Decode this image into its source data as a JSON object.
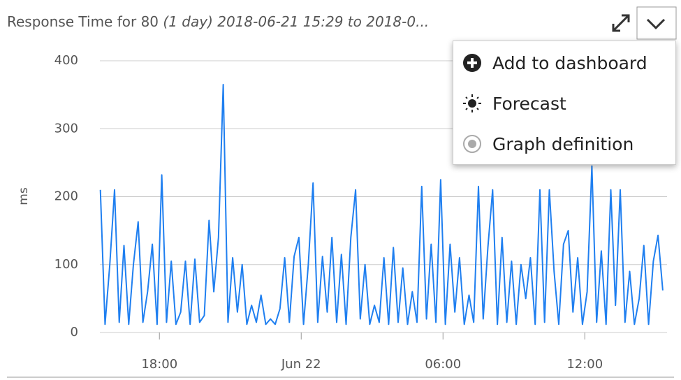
{
  "chart_data": {
    "type": "line",
    "title": "Response Time for 80",
    "subtitle": "(1 day) 2018-06-21 15:29 to 2018-0...",
    "y_label": "ms",
    "color": "#1f7ff0",
    "grid": true,
    "xlim": [
      15.48,
      39.48
    ],
    "xticks": [
      {
        "value": 18,
        "label": "18:00"
      },
      {
        "value": 24,
        "label": "Jun 22"
      },
      {
        "value": 30,
        "label": "06:00"
      },
      {
        "value": 36,
        "label": "12:00"
      }
    ],
    "ylim": [
      0,
      400
    ],
    "yticks": [
      0,
      100,
      200,
      300,
      400
    ],
    "x": [
      15.5,
      15.7,
      15.9,
      16.1,
      16.3,
      16.5,
      16.7,
      16.9,
      17.1,
      17.3,
      17.5,
      17.7,
      17.9,
      18.1,
      18.3,
      18.5,
      18.7,
      18.9,
      19.1,
      19.3,
      19.5,
      19.7,
      19.9,
      20.1,
      20.3,
      20.5,
      20.7,
      20.9,
      21.1,
      21.3,
      21.5,
      21.7,
      21.9,
      22.1,
      22.3,
      22.5,
      22.7,
      22.9,
      23.1,
      23.3,
      23.5,
      23.7,
      23.9,
      24.1,
      24.3,
      24.5,
      24.7,
      24.9,
      25.1,
      25.3,
      25.5,
      25.7,
      25.9,
      26.1,
      26.3,
      26.5,
      26.7,
      26.9,
      27.1,
      27.3,
      27.5,
      27.7,
      27.9,
      28.1,
      28.3,
      28.5,
      28.7,
      28.9,
      29.1,
      29.3,
      29.5,
      29.7,
      29.9,
      30.1,
      30.3,
      30.5,
      30.7,
      30.9,
      31.1,
      31.3,
      31.5,
      31.7,
      31.9,
      32.1,
      32.3,
      32.5,
      32.7,
      32.9,
      33.1,
      33.3,
      33.5,
      33.7,
      33.9,
      34.1,
      34.3,
      34.5,
      34.7,
      34.9,
      35.1,
      35.3,
      35.5,
      35.7,
      35.9,
      36.1,
      36.3,
      36.5,
      36.7,
      36.9,
      37.1,
      37.3,
      37.5,
      37.7,
      37.9,
      38.1,
      38.3,
      38.5,
      38.7,
      38.9,
      39.1,
      39.3
    ],
    "values": [
      210,
      12,
      100,
      210,
      15,
      128,
      12,
      100,
      163,
      15,
      60,
      130,
      12,
      232,
      15,
      105,
      12,
      30,
      105,
      12,
      108,
      15,
      25,
      165,
      60,
      140,
      365,
      15,
      110,
      30,
      100,
      12,
      40,
      15,
      55,
      12,
      20,
      12,
      35,
      110,
      15,
      112,
      140,
      12,
      100,
      220,
      15,
      112,
      30,
      140,
      15,
      115,
      12,
      140,
      210,
      20,
      100,
      12,
      40,
      15,
      110,
      12,
      125,
      15,
      95,
      12,
      60,
      15,
      215,
      20,
      130,
      15,
      225,
      12,
      130,
      30,
      110,
      12,
      55,
      15,
      215,
      20,
      125,
      210,
      12,
      140,
      15,
      105,
      12,
      100,
      50,
      110,
      12,
      210,
      15,
      210,
      90,
      12,
      130,
      150,
      30,
      110,
      12,
      60,
      245,
      15,
      120,
      12,
      210,
      40,
      210,
      15,
      90,
      12,
      50,
      128,
      12,
      105,
      143,
      62
    ]
  },
  "menu": {
    "items": [
      "Add to dashboard",
      "Forecast",
      "Graph definition"
    ]
  }
}
